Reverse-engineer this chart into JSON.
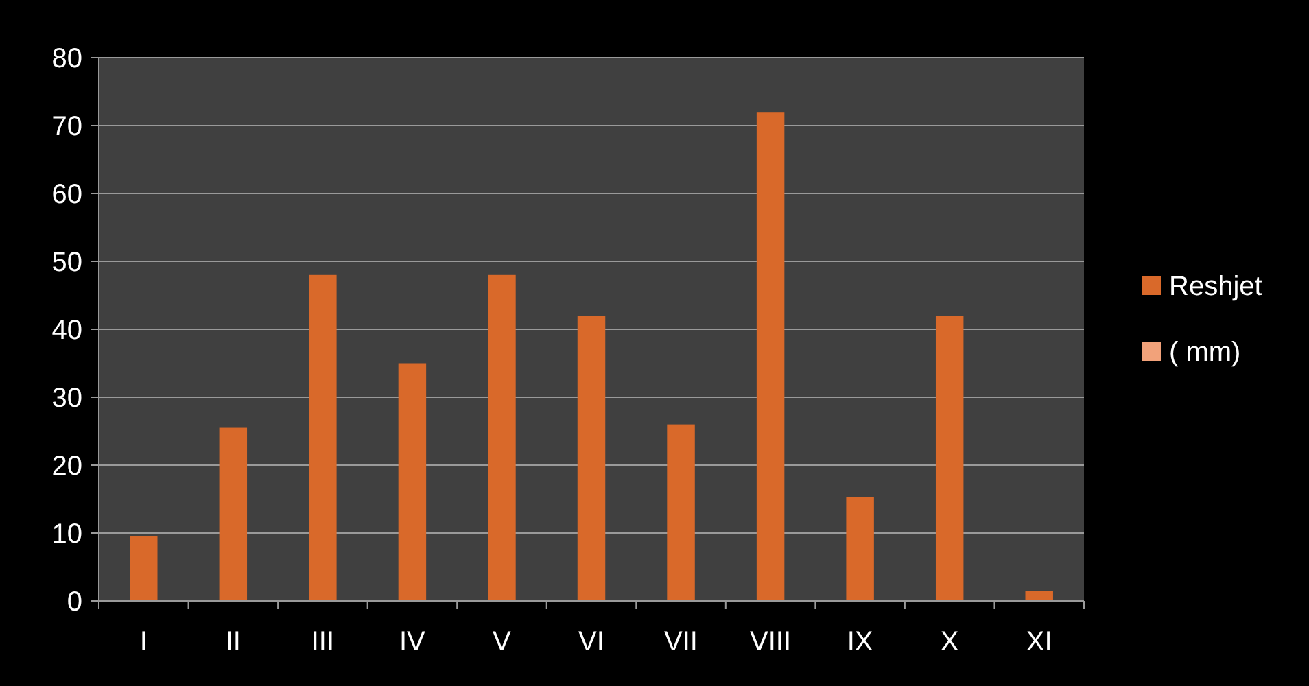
{
  "chart_data": {
    "type": "bar",
    "categories": [
      "I",
      "II",
      "III",
      "IV",
      "V",
      "VI",
      "VII",
      "VIII",
      "IX",
      "X",
      "XI"
    ],
    "series": [
      {
        "name": "Reshjet",
        "color": "#d9692a",
        "values": [
          9.5,
          25.5,
          48,
          35,
          48,
          42,
          26,
          72,
          15.3,
          42,
          1.5
        ]
      },
      {
        "name": "( mm)",
        "color": "#f2a27a",
        "values": [
          null,
          null,
          null,
          null,
          null,
          null,
          null,
          null,
          null,
          null,
          null
        ]
      }
    ],
    "ylim": [
      0,
      80
    ],
    "yticks": [
      0,
      10,
      20,
      30,
      40,
      50,
      60,
      70,
      80
    ],
    "grid": "y",
    "legend": "right"
  }
}
